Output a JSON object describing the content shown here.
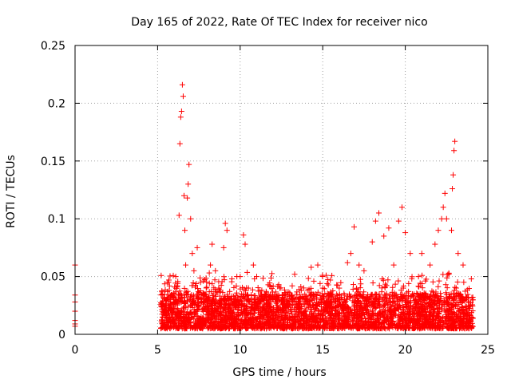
{
  "chart_data": {
    "type": "scatter",
    "title": "Day 165 of 2022, Rate Of TEC Index for receiver nico",
    "xlabel": "GPS time / hours",
    "ylabel": "ROTI / TECUs",
    "xlim": [
      0,
      25
    ],
    "ylim": [
      0,
      0.25
    ],
    "xticks": [
      0,
      5,
      10,
      15,
      20,
      25
    ],
    "xtick_labels": [
      "0",
      "5",
      "10",
      "15",
      "20",
      "25"
    ],
    "yticks": [
      0,
      0.05,
      0.1,
      0.15,
      0.2,
      0.25
    ],
    "ytick_labels": [
      "0",
      "0.05",
      "0.1",
      "0.15",
      "0.2",
      "0.25"
    ],
    "grid": true,
    "marker": "+",
    "color": "#ff0000",
    "points": [
      [
        0.0,
        0.06
      ],
      [
        0.0,
        0.034
      ],
      [
        0.0,
        0.028
      ],
      [
        0.0,
        0.02
      ],
      [
        0.0,
        0.012
      ],
      [
        0.0,
        0.009
      ],
      [
        0.0,
        0.007
      ],
      [
        5.3,
        0.015
      ],
      [
        5.4,
        0.022
      ],
      [
        5.5,
        0.03
      ],
      [
        5.6,
        0.045
      ],
      [
        5.7,
        0.038
      ],
      [
        5.8,
        0.028
      ],
      [
        5.9,
        0.02
      ],
      [
        6.0,
        0.035
      ],
      [
        6.1,
        0.05
      ],
      [
        6.2,
        0.042
      ],
      [
        6.3,
        0.103
      ],
      [
        6.35,
        0.165
      ],
      [
        6.4,
        0.188
      ],
      [
        6.45,
        0.193
      ],
      [
        6.5,
        0.216
      ],
      [
        6.55,
        0.206
      ],
      [
        6.6,
        0.12
      ],
      [
        6.65,
        0.09
      ],
      [
        6.7,
        0.06
      ],
      [
        6.8,
        0.118
      ],
      [
        6.85,
        0.13
      ],
      [
        6.9,
        0.147
      ],
      [
        7.0,
        0.1
      ],
      [
        7.1,
        0.07
      ],
      [
        7.2,
        0.055
      ],
      [
        7.4,
        0.075
      ],
      [
        7.6,
        0.045
      ],
      [
        7.8,
        0.035
      ],
      [
        8.0,
        0.03
      ],
      [
        8.2,
        0.06
      ],
      [
        8.3,
        0.078
      ],
      [
        8.5,
        0.055
      ],
      [
        8.7,
        0.04
      ],
      [
        9.0,
        0.075
      ],
      [
        9.1,
        0.096
      ],
      [
        9.2,
        0.09
      ],
      [
        9.5,
        0.048
      ],
      [
        9.8,
        0.05
      ],
      [
        10.0,
        0.05
      ],
      [
        10.2,
        0.086
      ],
      [
        10.3,
        0.078
      ],
      [
        10.5,
        0.04
      ],
      [
        10.8,
        0.06
      ],
      [
        11.0,
        0.05
      ],
      [
        11.5,
        0.032
      ],
      [
        12.0,
        0.03
      ],
      [
        12.4,
        0.04
      ],
      [
        13.0,
        0.036
      ],
      [
        13.3,
        0.052
      ],
      [
        13.7,
        0.038
      ],
      [
        14.0,
        0.03
      ],
      [
        14.3,
        0.058
      ],
      [
        14.7,
        0.06
      ],
      [
        15.0,
        0.04
      ],
      [
        15.5,
        0.035
      ],
      [
        16.0,
        0.04
      ],
      [
        16.5,
        0.062
      ],
      [
        16.7,
        0.07
      ],
      [
        16.9,
        0.093
      ],
      [
        17.2,
        0.06
      ],
      [
        17.5,
        0.055
      ],
      [
        18.0,
        0.08
      ],
      [
        18.2,
        0.098
      ],
      [
        18.4,
        0.105
      ],
      [
        18.7,
        0.085
      ],
      [
        19.0,
        0.092
      ],
      [
        19.3,
        0.06
      ],
      [
        19.6,
        0.098
      ],
      [
        19.8,
        0.11
      ],
      [
        20.0,
        0.088
      ],
      [
        20.3,
        0.07
      ],
      [
        20.8,
        0.05
      ],
      [
        21.0,
        0.07
      ],
      [
        21.5,
        0.06
      ],
      [
        21.8,
        0.078
      ],
      [
        22.0,
        0.09
      ],
      [
        22.2,
        0.1
      ],
      [
        22.3,
        0.11
      ],
      [
        22.4,
        0.122
      ],
      [
        22.5,
        0.1
      ],
      [
        22.8,
        0.09
      ],
      [
        22.85,
        0.126
      ],
      [
        22.9,
        0.138
      ],
      [
        22.95,
        0.159
      ],
      [
        23.0,
        0.167
      ],
      [
        23.2,
        0.07
      ],
      [
        23.5,
        0.06
      ],
      [
        24.0,
        0.048
      ]
    ],
    "baseline_band": {
      "x_range": [
        5.2,
        24.1
      ],
      "y_range": [
        0.005,
        0.035
      ]
    }
  }
}
